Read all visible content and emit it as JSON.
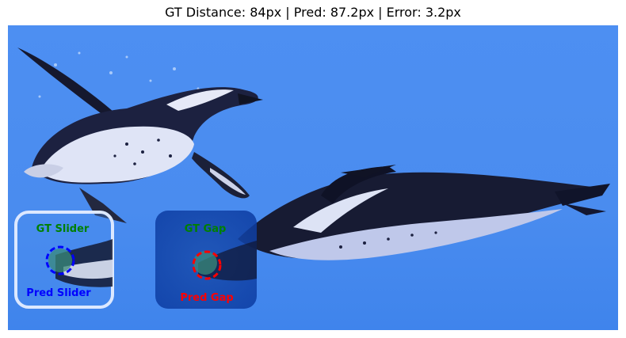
{
  "title": "GT Distance: 84px | Pred: 87.2px | Error: 3.2px",
  "labels": {
    "gt_slider": "GT Slider",
    "pred_slider": "Pred Slider",
    "gt_gap": "GT Gap",
    "pred_gap": "Pred Gap"
  },
  "colors": {
    "gt": "#008000",
    "pred": "#0000ff",
    "pred_gap": "#ff0000",
    "water": "#4a8ff0"
  }
}
